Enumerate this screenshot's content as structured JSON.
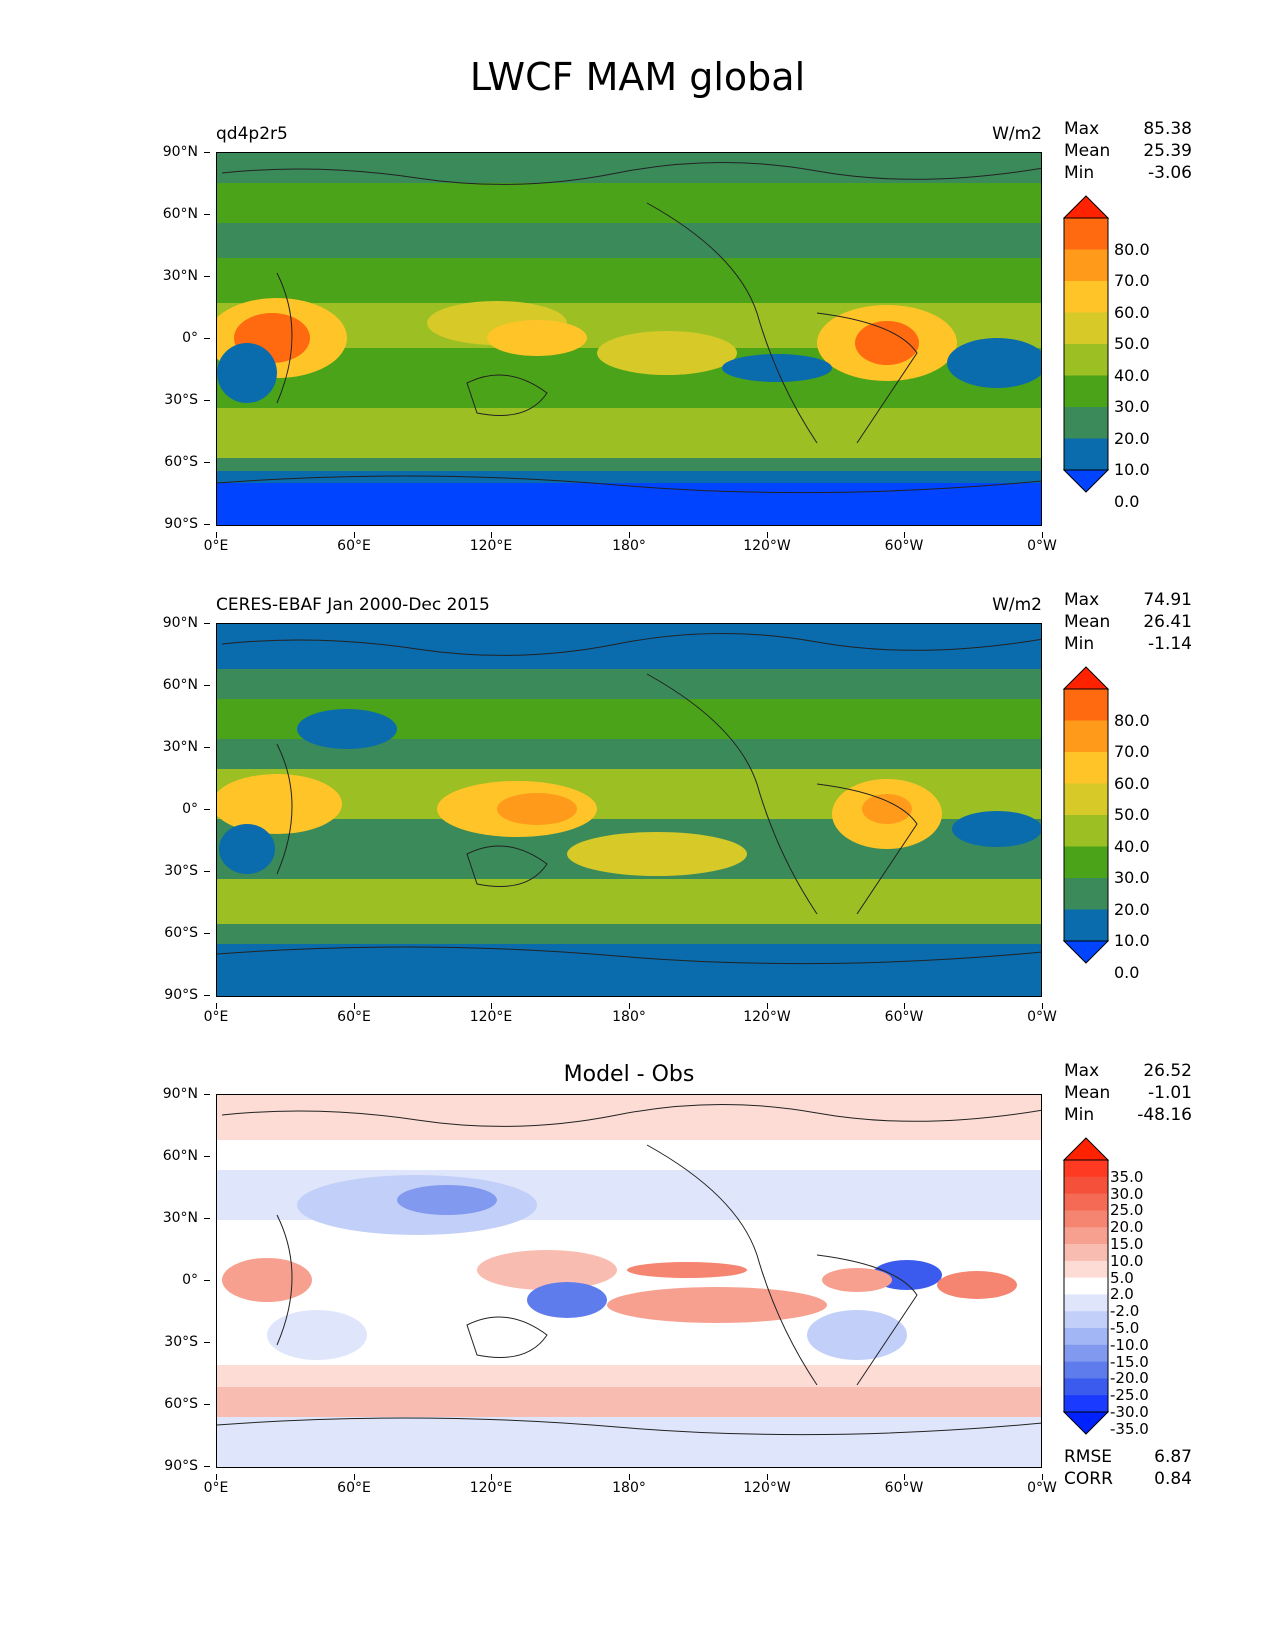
{
  "title": "LWCF MAM global",
  "axes": {
    "lat_ticks": [
      "90°N",
      "60°N",
      "30°N",
      "0°",
      "30°S",
      "60°S",
      "90°S"
    ],
    "lon_ticks": [
      "0°E",
      "60°E",
      "120°E",
      "180°",
      "120°W",
      "60°W",
      "0°W"
    ]
  },
  "panels": [
    {
      "left_label": "qd4p2r5",
      "right_label": "W/m2",
      "center_label": "",
      "stats": [
        {
          "label": "Max",
          "value": "85.38"
        },
        {
          "label": "Mean",
          "value": "25.39"
        },
        {
          "label": "Min",
          "value": "-3.06"
        }
      ],
      "colorbar": {
        "levels": [
          "80.0",
          "70.0",
          "60.0",
          "50.0",
          "40.0",
          "30.0",
          "20.0",
          "10.0",
          "0.0"
        ],
        "colors": [
          "#ff2200",
          "#ff6a10",
          "#ff9a1a",
          "#ffc428",
          "#d6c928",
          "#9cbf24",
          "#4aa318",
          "#3a8a5a",
          "#0a6bad",
          "#0044ff"
        ]
      }
    },
    {
      "left_label": "CERES-EBAF Jan 2000-Dec 2015",
      "right_label": "W/m2",
      "center_label": "",
      "stats": [
        {
          "label": "Max",
          "value": "74.91"
        },
        {
          "label": "Mean",
          "value": "26.41"
        },
        {
          "label": "Min",
          "value": "-1.14"
        }
      ],
      "colorbar": {
        "levels": [
          "80.0",
          "70.0",
          "60.0",
          "50.0",
          "40.0",
          "30.0",
          "20.0",
          "10.0",
          "0.0"
        ],
        "colors": [
          "#ff2200",
          "#ff6a10",
          "#ff9a1a",
          "#ffc428",
          "#d6c928",
          "#9cbf24",
          "#4aa318",
          "#3a8a5a",
          "#0a6bad",
          "#0044ff"
        ]
      }
    },
    {
      "left_label": "",
      "right_label": "",
      "center_label": "Model - Obs",
      "stats": [
        {
          "label": "Max",
          "value": "26.52"
        },
        {
          "label": "Mean",
          "value": "-1.01"
        },
        {
          "label": "Min",
          "value": "-48.16"
        }
      ],
      "colorbar": {
        "levels": [
          "35.0",
          "30.0",
          "25.0",
          "20.0",
          "15.0",
          "10.0",
          "5.0",
          "2.0",
          "-2.0",
          "-5.0",
          "-10.0",
          "-15.0",
          "-20.0",
          "-25.0",
          "-30.0",
          "-35.0"
        ],
        "colors": [
          "#ff2200",
          "#ff3a22",
          "#f5503a",
          "#f46a55",
          "#f58470",
          "#f7a090",
          "#f9bcb0",
          "#fcdcd4",
          "#ffffff",
          "#dfe6fb",
          "#c2cff8",
          "#a2b5f4",
          "#819af0",
          "#5f7cec",
          "#3b5bee",
          "#1a3aff",
          "#0022ff"
        ]
      },
      "footer_stats": [
        {
          "label": "RMSE",
          "value": "6.87"
        },
        {
          "label": "CORR",
          "value": "0.84"
        }
      ]
    }
  ]
}
